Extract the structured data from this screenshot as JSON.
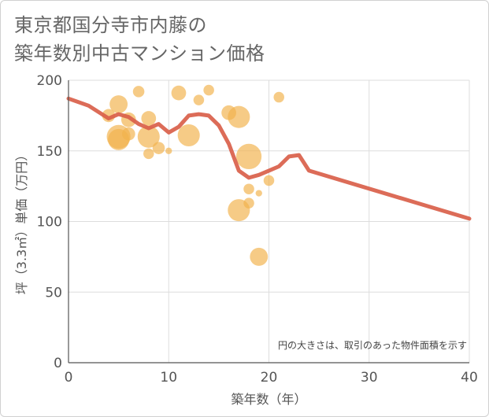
{
  "chart_data": {
    "type": "scatter",
    "title_lines": [
      "東京都国分寺市内藤の",
      "築年数別中古マンション価格"
    ],
    "xlabel": "築年数（年）",
    "ylabel": "坪（3.3㎡）単価（万円）",
    "xlim": [
      0,
      40
    ],
    "ylim": [
      0,
      200
    ],
    "xticks": [
      0,
      10,
      20,
      30,
      40
    ],
    "yticks": [
      0,
      50,
      100,
      150,
      200
    ],
    "grid": true,
    "annotation": "円の大きさは、取引のあった物件面積を示す",
    "colors": {
      "bubble": "#f2b24c",
      "line": "#d9604a",
      "grid": "#dddddd",
      "axis": "#555555"
    },
    "bubbles": [
      {
        "x": 4,
        "y": 175,
        "r": 1.6
      },
      {
        "x": 5,
        "y": 183,
        "r": 2.2
      },
      {
        "x": 5,
        "y": 158,
        "r": 2.6
      },
      {
        "x": 5,
        "y": 160,
        "r": 2.9
      },
      {
        "x": 6,
        "y": 172,
        "r": 1.8
      },
      {
        "x": 6,
        "y": 162,
        "r": 1.6
      },
      {
        "x": 7,
        "y": 192,
        "r": 1.4
      },
      {
        "x": 8,
        "y": 173,
        "r": 1.8
      },
      {
        "x": 8,
        "y": 160,
        "r": 2.7
      },
      {
        "x": 8,
        "y": 148,
        "r": 1.3
      },
      {
        "x": 9,
        "y": 152,
        "r": 1.5
      },
      {
        "x": 10,
        "y": 150,
        "r": 0.8
      },
      {
        "x": 11,
        "y": 191,
        "r": 1.8
      },
      {
        "x": 12,
        "y": 161,
        "r": 2.7
      },
      {
        "x": 13,
        "y": 186,
        "r": 1.3
      },
      {
        "x": 14,
        "y": 193,
        "r": 1.3
      },
      {
        "x": 16,
        "y": 177,
        "r": 1.8
      },
      {
        "x": 17,
        "y": 174,
        "r": 2.7
      },
      {
        "x": 17,
        "y": 108,
        "r": 2.7
      },
      {
        "x": 18,
        "y": 146,
        "r": 3.1
      },
      {
        "x": 18,
        "y": 123,
        "r": 1.3
      },
      {
        "x": 18,
        "y": 113,
        "r": 1.3
      },
      {
        "x": 19,
        "y": 120,
        "r": 0.8
      },
      {
        "x": 19,
        "y": 75,
        "r": 2.2
      },
      {
        "x": 20,
        "y": 129,
        "r": 1.3
      },
      {
        "x": 21,
        "y": 188,
        "r": 1.3
      }
    ],
    "trend": {
      "x": [
        0,
        2,
        4,
        5,
        6,
        7,
        8,
        9,
        10,
        11,
        12,
        13,
        14,
        15,
        16,
        17,
        18,
        19,
        20,
        21,
        22,
        23,
        24,
        40
      ],
      "y": [
        187,
        182,
        173,
        176,
        174,
        169,
        166,
        169,
        163,
        167,
        175,
        176,
        175,
        168,
        155,
        136,
        131,
        133,
        136,
        139,
        146,
        147,
        136,
        102
      ]
    }
  }
}
